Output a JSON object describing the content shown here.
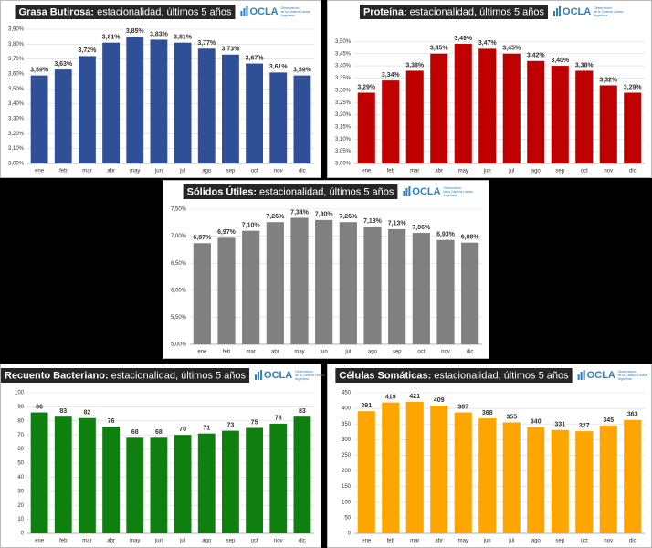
{
  "logo": {
    "name": "OCLA",
    "tagline": [
      "Observatorio",
      "de la Cadena Láctea"
    ],
    "country": "Argentina"
  },
  "chart_data": [
    {
      "type": "bar",
      "title": "Grasa Butirosa:",
      "subtitle": "estacionalidad, últimos 5 años",
      "categories": [
        "ene",
        "feb",
        "mar",
        "abr",
        "may",
        "jun",
        "jul",
        "ago",
        "sep",
        "oct",
        "nov",
        "dic"
      ],
      "values": [
        3.59,
        3.63,
        3.72,
        3.81,
        3.85,
        3.83,
        3.81,
        3.77,
        3.73,
        3.67,
        3.61,
        3.59
      ],
      "value_labels": [
        "3,59%",
        "3,63%",
        "3,72%",
        "3,81%",
        "3,85%",
        "3,83%",
        "3,81%",
        "3,77%",
        "3,73%",
        "3,67%",
        "3,61%",
        "3,59%"
      ],
      "color": "#2f4f96",
      "ylim": [
        3.0,
        3.9
      ],
      "grid": true,
      "yticks": [
        {
          "value": 3.0,
          "label": "3,00%"
        },
        {
          "value": 3.1,
          "label": "3,10%"
        },
        {
          "value": 3.2,
          "label": "3,20%"
        },
        {
          "value": 3.3,
          "label": "3,30%"
        },
        {
          "value": 3.4,
          "label": "3,40%"
        },
        {
          "value": 3.5,
          "label": "3,50%"
        },
        {
          "value": 3.6,
          "label": "3,60%"
        },
        {
          "value": 3.7,
          "label": "3,70%"
        },
        {
          "value": 3.8,
          "label": "3,80%"
        },
        {
          "value": 3.9,
          "label": "3,90%"
        }
      ]
    },
    {
      "type": "bar",
      "title": "Proteína:",
      "subtitle": "estacionalidad, últimos 5 años",
      "categories": [
        "ene",
        "feb",
        "mar",
        "abr",
        "may",
        "jun",
        "jul",
        "ago",
        "sep",
        "oct",
        "nov",
        "dic"
      ],
      "values": [
        3.29,
        3.34,
        3.38,
        3.45,
        3.49,
        3.47,
        3.45,
        3.42,
        3.4,
        3.38,
        3.32,
        3.29
      ],
      "value_labels": [
        "3,29%",
        "3,34%",
        "3,38%",
        "3,45%",
        "3,49%",
        "3,47%",
        "3,45%",
        "3,42%",
        "3,40%",
        "3,38%",
        "3,32%",
        "3,29%"
      ],
      "color": "#c00000",
      "ylim": [
        3.0,
        3.55
      ],
      "grid": true,
      "yticks": [
        {
          "value": 3.0,
          "label": "3,00%"
        },
        {
          "value": 3.05,
          "label": "3,05%"
        },
        {
          "value": 3.1,
          "label": "3,10%"
        },
        {
          "value": 3.15,
          "label": "3,15%"
        },
        {
          "value": 3.2,
          "label": "3,20%"
        },
        {
          "value": 3.25,
          "label": "3,25%"
        },
        {
          "value": 3.3,
          "label": "3,30%"
        },
        {
          "value": 3.35,
          "label": "3,35%"
        },
        {
          "value": 3.4,
          "label": "3,40%"
        },
        {
          "value": 3.45,
          "label": "3,45%"
        },
        {
          "value": 3.5,
          "label": "3,50%"
        }
      ]
    },
    {
      "type": "bar",
      "title": "Sólidos Útiles:",
      "subtitle": "estacionalidad, últimos 5 años",
      "categories": [
        "ene",
        "feb",
        "mar",
        "abr",
        "may",
        "jun",
        "jul",
        "ago",
        "sep",
        "oct",
        "nov",
        "dic"
      ],
      "values": [
        6.87,
        6.97,
        7.1,
        7.26,
        7.34,
        7.3,
        7.26,
        7.18,
        7.13,
        7.06,
        6.93,
        6.88
      ],
      "value_labels": [
        "6,87%",
        "6,97%",
        "7,10%",
        "7,26%",
        "7,34%",
        "7,30%",
        "7,26%",
        "7,18%",
        "7,13%",
        "7,06%",
        "6,93%",
        "6,88%"
      ],
      "color": "#808080",
      "ylim": [
        5.0,
        7.5
      ],
      "grid": true,
      "yticks": [
        {
          "value": 5.0,
          "label": "5,00%"
        },
        {
          "value": 5.5,
          "label": "5,50%"
        },
        {
          "value": 6.0,
          "label": "6,00%"
        },
        {
          "value": 6.5,
          "label": "6,50%"
        },
        {
          "value": 7.0,
          "label": "7,00%"
        },
        {
          "value": 7.5,
          "label": "7,50%"
        }
      ]
    },
    {
      "type": "bar",
      "title": "Recuento Bacteriano:",
      "subtitle": "estacionalidad, últimos 5 años",
      "categories": [
        "ene",
        "feb",
        "mar",
        "abr",
        "may",
        "jun",
        "jul",
        "ago",
        "sep",
        "oct",
        "nov",
        "dic"
      ],
      "values": [
        86,
        83,
        82,
        76,
        68,
        68,
        70,
        71,
        73,
        75,
        78,
        83
      ],
      "color": "#0f800f",
      "ylim": [
        0,
        100
      ],
      "grid": true,
      "yticks": [
        0,
        10,
        20,
        30,
        40,
        50,
        60,
        70,
        80,
        90,
        100
      ]
    },
    {
      "type": "bar",
      "title": "Células Somáticas:",
      "subtitle": "estacionalidad, últimos 5 años",
      "categories": [
        "ene",
        "feb",
        "mar",
        "abr",
        "may",
        "jun",
        "jul",
        "ago",
        "sep",
        "oct",
        "nov",
        "dic"
      ],
      "values": [
        391,
        419,
        421,
        409,
        387,
        368,
        355,
        340,
        331,
        327,
        345,
        363
      ],
      "color": "#ffa500",
      "ylim": [
        0,
        450
      ],
      "grid": true,
      "yticks": [
        0,
        50,
        100,
        150,
        200,
        250,
        300,
        350,
        400,
        450
      ]
    }
  ]
}
